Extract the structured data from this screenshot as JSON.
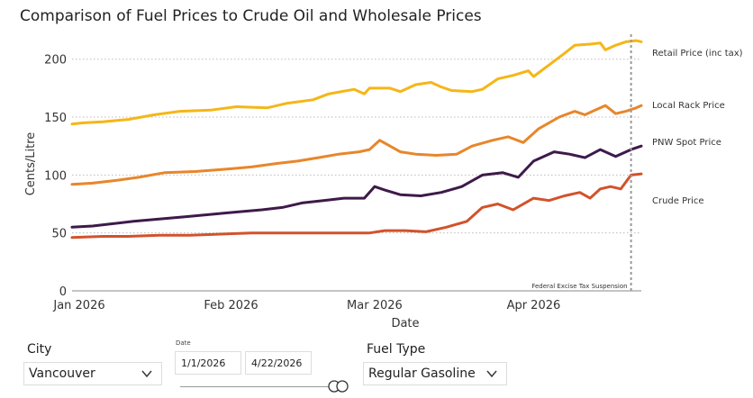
{
  "chart_data": {
    "type": "line",
    "title": "Comparison of Fuel Prices to Crude Oil and Wholesale Prices",
    "xlabel": "Date",
    "ylabel": "Cents/Litre",
    "ylim": [
      0,
      220
    ],
    "xlim": [
      "2026-01-01",
      "2026-04-22"
    ],
    "yticks": [
      "0",
      "50",
      "100",
      "150",
      "200"
    ],
    "xticks": [
      "Jan 2026",
      "Feb 2026",
      "Mar 2026",
      "Apr 2026"
    ],
    "grid": "horizontal dotted",
    "annotation": {
      "text": "Federal Excise Tax Suspension",
      "date": "2026-04-20"
    },
    "series": [
      {
        "name": "Retail Price (inc tax)",
        "color": "#F5B617",
        "points": [
          [
            "2026-01-01",
            144
          ],
          [
            "2026-01-03",
            145
          ],
          [
            "2026-01-07",
            146
          ],
          [
            "2026-01-12",
            148
          ],
          [
            "2026-01-17",
            152
          ],
          [
            "2026-01-22",
            155
          ],
          [
            "2026-01-28",
            156
          ],
          [
            "2026-02-02",
            159
          ],
          [
            "2026-02-08",
            158
          ],
          [
            "2026-02-12",
            162
          ],
          [
            "2026-02-17",
            165
          ],
          [
            "2026-02-20",
            170
          ],
          [
            "2026-02-25",
            174
          ],
          [
            "2026-02-27",
            170
          ],
          [
            "2026-02-28",
            175
          ],
          [
            "2026-03-04",
            175
          ],
          [
            "2026-03-06",
            172
          ],
          [
            "2026-03-09",
            178
          ],
          [
            "2026-03-12",
            180
          ],
          [
            "2026-03-14",
            176
          ],
          [
            "2026-03-16",
            173
          ],
          [
            "2026-03-20",
            172
          ],
          [
            "2026-03-22",
            174
          ],
          [
            "2026-03-25",
            183
          ],
          [
            "2026-03-28",
            186
          ],
          [
            "2026-03-31",
            190
          ],
          [
            "2026-04-01",
            185
          ],
          [
            "2026-04-04",
            195
          ],
          [
            "2026-04-07",
            205
          ],
          [
            "2026-04-09",
            212
          ],
          [
            "2026-04-12",
            213
          ],
          [
            "2026-04-14",
            214
          ],
          [
            "2026-04-15",
            208
          ],
          [
            "2026-04-17",
            212
          ],
          [
            "2026-04-19",
            215
          ],
          [
            "2026-04-21",
            216
          ],
          [
            "2026-04-22",
            215
          ]
        ]
      },
      {
        "name": "Local Rack Price",
        "color": "#E8862A",
        "points": [
          [
            "2026-01-01",
            92
          ],
          [
            "2026-01-05",
            93
          ],
          [
            "2026-01-09",
            95
          ],
          [
            "2026-01-14",
            98
          ],
          [
            "2026-01-19",
            102
          ],
          [
            "2026-01-25",
            103
          ],
          [
            "2026-01-31",
            105
          ],
          [
            "2026-02-05",
            107
          ],
          [
            "2026-02-10",
            110
          ],
          [
            "2026-02-14",
            112
          ],
          [
            "2026-02-18",
            115
          ],
          [
            "2026-02-22",
            118
          ],
          [
            "2026-02-26",
            120
          ],
          [
            "2026-02-28",
            122
          ],
          [
            "2026-03-02",
            130
          ],
          [
            "2026-03-04",
            125
          ],
          [
            "2026-03-06",
            120
          ],
          [
            "2026-03-09",
            118
          ],
          [
            "2026-03-13",
            117
          ],
          [
            "2026-03-17",
            118
          ],
          [
            "2026-03-20",
            125
          ],
          [
            "2026-03-24",
            130
          ],
          [
            "2026-03-27",
            133
          ],
          [
            "2026-03-30",
            128
          ],
          [
            "2026-04-02",
            140
          ],
          [
            "2026-04-06",
            150
          ],
          [
            "2026-04-09",
            155
          ],
          [
            "2026-04-11",
            152
          ],
          [
            "2026-04-13",
            156
          ],
          [
            "2026-04-15",
            160
          ],
          [
            "2026-04-17",
            153
          ],
          [
            "2026-04-19",
            155
          ],
          [
            "2026-04-21",
            158
          ],
          [
            "2026-04-22",
            160
          ]
        ]
      },
      {
        "name": "PNW Spot Price",
        "color": "#3E1A4A",
        "points": [
          [
            "2026-01-01",
            55
          ],
          [
            "2026-01-05",
            56
          ],
          [
            "2026-01-09",
            58
          ],
          [
            "2026-01-13",
            60
          ],
          [
            "2026-01-18",
            62
          ],
          [
            "2026-01-23",
            64
          ],
          [
            "2026-01-28",
            66
          ],
          [
            "2026-02-02",
            68
          ],
          [
            "2026-02-07",
            70
          ],
          [
            "2026-02-11",
            72
          ],
          [
            "2026-02-15",
            76
          ],
          [
            "2026-02-19",
            78
          ],
          [
            "2026-02-23",
            80
          ],
          [
            "2026-02-27",
            80
          ],
          [
            "2026-03-01",
            90
          ],
          [
            "2026-03-03",
            87
          ],
          [
            "2026-03-06",
            83
          ],
          [
            "2026-03-10",
            82
          ],
          [
            "2026-03-14",
            85
          ],
          [
            "2026-03-18",
            90
          ],
          [
            "2026-03-22",
            100
          ],
          [
            "2026-03-26",
            102
          ],
          [
            "2026-03-29",
            98
          ],
          [
            "2026-04-01",
            112
          ],
          [
            "2026-04-05",
            120
          ],
          [
            "2026-04-08",
            118
          ],
          [
            "2026-04-11",
            115
          ],
          [
            "2026-04-14",
            122
          ],
          [
            "2026-04-17",
            116
          ],
          [
            "2026-04-20",
            122
          ],
          [
            "2026-04-22",
            125
          ]
        ]
      },
      {
        "name": "Crude Price",
        "color": "#D2522B",
        "points": [
          [
            "2026-01-01",
            46
          ],
          [
            "2026-01-07",
            47
          ],
          [
            "2026-01-12",
            47
          ],
          [
            "2026-01-18",
            48
          ],
          [
            "2026-01-24",
            48
          ],
          [
            "2026-01-30",
            49
          ],
          [
            "2026-02-05",
            50
          ],
          [
            "2026-02-11",
            50
          ],
          [
            "2026-02-17",
            50
          ],
          [
            "2026-02-23",
            50
          ],
          [
            "2026-02-28",
            50
          ],
          [
            "2026-03-03",
            52
          ],
          [
            "2026-03-07",
            52
          ],
          [
            "2026-03-11",
            51
          ],
          [
            "2026-03-15",
            55
          ],
          [
            "2026-03-19",
            60
          ],
          [
            "2026-03-22",
            72
          ],
          [
            "2026-03-25",
            75
          ],
          [
            "2026-03-28",
            70
          ],
          [
            "2026-04-01",
            80
          ],
          [
            "2026-04-04",
            78
          ],
          [
            "2026-04-07",
            82
          ],
          [
            "2026-04-10",
            85
          ],
          [
            "2026-04-12",
            80
          ],
          [
            "2026-04-14",
            88
          ],
          [
            "2026-04-16",
            90
          ],
          [
            "2026-04-18",
            88
          ],
          [
            "2026-04-20",
            100
          ],
          [
            "2026-04-22",
            101
          ]
        ]
      }
    ]
  },
  "filters": {
    "city": {
      "label": "City",
      "value": "Vancouver"
    },
    "date": {
      "label": "Date",
      "start": "1/1/2026",
      "end": "4/22/2026"
    },
    "fuel_type": {
      "label": "Fuel Type",
      "value": "Regular Gasoline"
    }
  },
  "icons": {
    "dropdown": "chevron-down-icon",
    "toggle": "slider-handle-icon"
  }
}
